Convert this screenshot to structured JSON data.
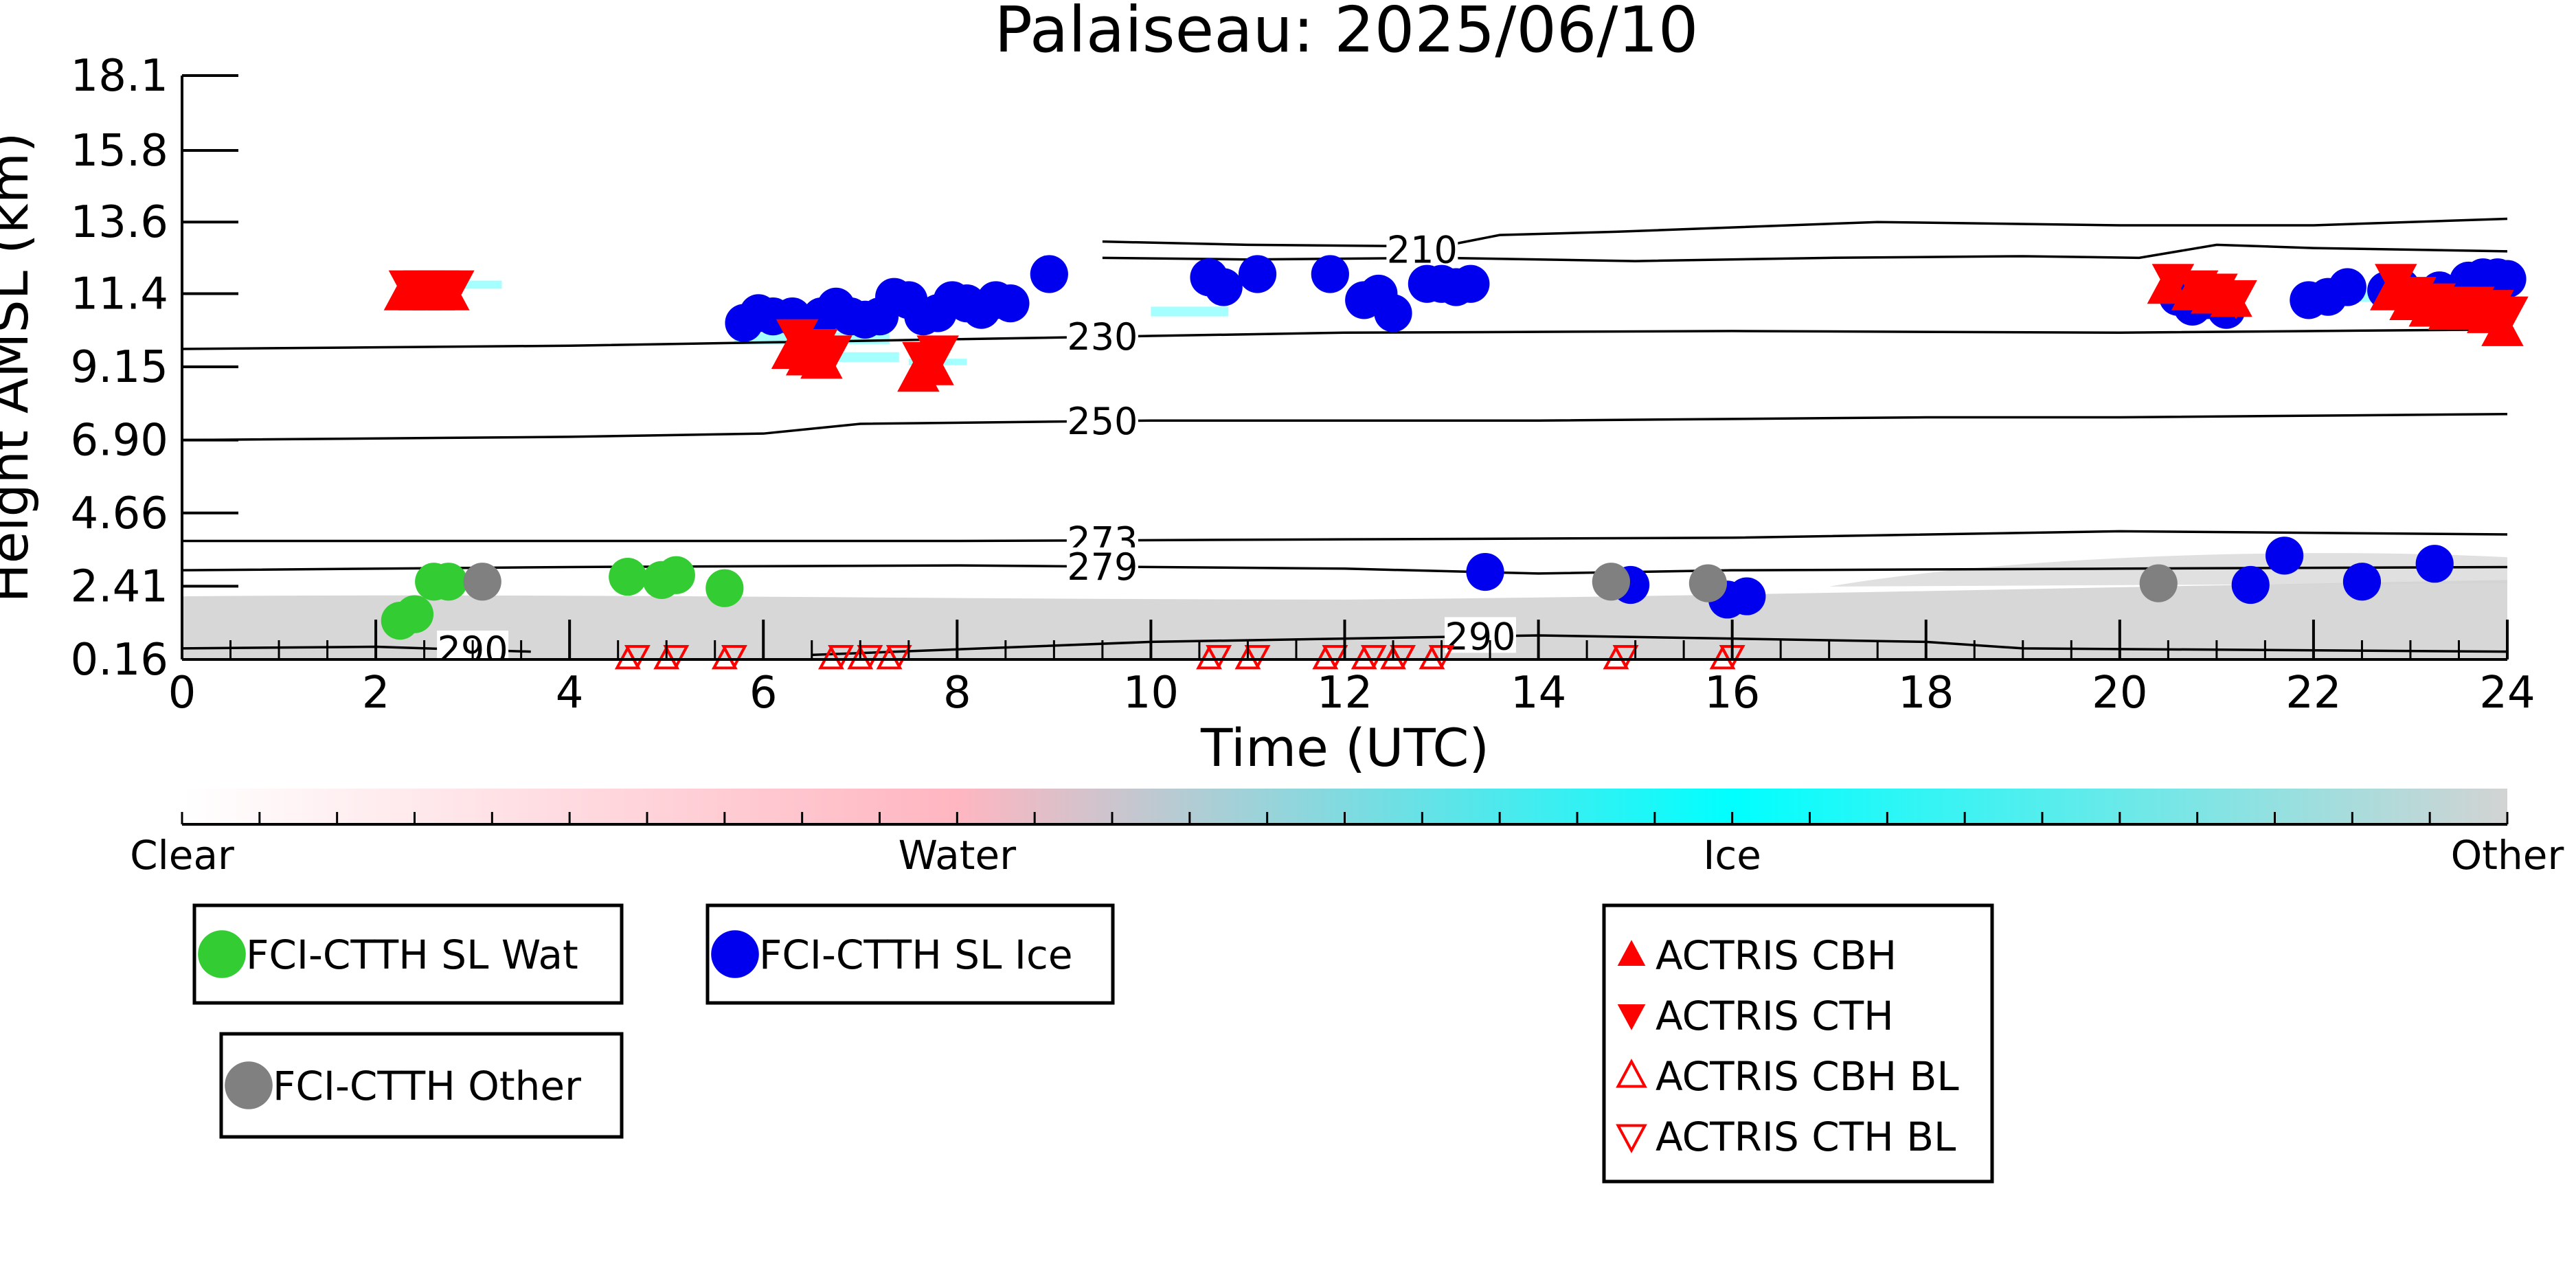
{
  "chart_data": {
    "type": "scatter",
    "title": "Palaiseau: 2025/06/10",
    "xlabel": "Time (UTC)",
    "ylabel": "Height AMSL (km)",
    "xlim": [
      0,
      24
    ],
    "ylim": [
      0.16,
      18.1
    ],
    "x_ticks": [
      "0",
      "2",
      "4",
      "6",
      "8",
      "10",
      "12",
      "14",
      "16",
      "18",
      "20",
      "22",
      "24"
    ],
    "y_ticks": [
      "0.16",
      "2.41",
      "4.66",
      "6.90",
      "9.15",
      "11.4",
      "13.6",
      "15.8",
      "18.1"
    ],
    "colorbar": {
      "labels": [
        "Clear",
        "Water",
        "Ice",
        "Other"
      ],
      "colors": [
        "#ffffff",
        "#ffb6c1",
        "#00ffff",
        "#d3d3d3"
      ]
    },
    "isotherms": [
      {
        "label": "210",
        "label_x": 12.8,
        "upper": [
          [
            9.5,
            13.0
          ],
          [
            11,
            12.9
          ],
          [
            13,
            12.85
          ],
          [
            13.6,
            13.2
          ],
          [
            14.8,
            13.3
          ],
          [
            17.5,
            13.6
          ],
          [
            20,
            13.5
          ],
          [
            22,
            13.5
          ],
          [
            24,
            13.7
          ]
        ],
        "lower": [
          [
            9.5,
            12.5
          ],
          [
            11,
            12.45
          ],
          [
            13,
            12.5
          ],
          [
            15,
            12.4
          ],
          [
            17,
            12.5
          ],
          [
            19,
            12.55
          ],
          [
            20.2,
            12.5
          ],
          [
            21,
            12.9
          ],
          [
            22,
            12.8
          ],
          [
            24,
            12.7
          ]
        ]
      },
      {
        "label": "230",
        "label_x": 9.5,
        "points": [
          [
            0,
            9.7
          ],
          [
            2,
            9.75
          ],
          [
            4,
            9.8
          ],
          [
            6,
            9.9
          ],
          [
            8,
            10.0
          ],
          [
            10,
            10.1
          ],
          [
            12,
            10.2
          ],
          [
            16,
            10.25
          ],
          [
            20,
            10.2
          ],
          [
            24,
            10.3
          ]
        ]
      },
      {
        "label": "250",
        "label_x": 9.5,
        "points": [
          [
            0,
            6.9
          ],
          [
            4,
            7.0
          ],
          [
            6,
            7.1
          ],
          [
            7,
            7.4
          ],
          [
            10,
            7.5
          ],
          [
            14,
            7.5
          ],
          [
            18,
            7.6
          ],
          [
            20,
            7.6
          ],
          [
            24,
            7.7
          ]
        ]
      },
      {
        "label": "273",
        "label_x": 9.5,
        "points": [
          [
            0,
            3.8
          ],
          [
            4,
            3.8
          ],
          [
            8,
            3.8
          ],
          [
            12,
            3.85
          ],
          [
            16,
            3.9
          ],
          [
            20,
            4.1
          ],
          [
            24,
            4.0
          ]
        ]
      },
      {
        "label": "279",
        "label_x": 9.5,
        "points": [
          [
            0,
            2.9
          ],
          [
            4,
            3.0
          ],
          [
            8,
            3.05
          ],
          [
            12,
            2.95
          ],
          [
            14,
            2.8
          ],
          [
            16,
            2.9
          ],
          [
            20,
            2.95
          ],
          [
            24,
            3.0
          ]
        ]
      },
      {
        "label": "290",
        "label_x": 3.0,
        "points": [
          [
            0,
            0.5
          ],
          [
            2,
            0.55
          ],
          [
            3.6,
            0.4
          ]
        ]
      },
      {
        "label": "290",
        "label_x": 13.4,
        "points": [
          [
            6.5,
            0.3
          ],
          [
            10,
            0.7
          ],
          [
            12,
            0.8
          ],
          [
            14,
            0.9
          ],
          [
            16,
            0.8
          ],
          [
            18,
            0.7
          ],
          [
            19,
            0.5
          ],
          [
            24,
            0.4
          ]
        ]
      }
    ],
    "series": [
      {
        "name": "FCI-CTTH SL Wat",
        "color": "#33cc33",
        "marker": "circle",
        "points": [
          [
            2.25,
            1.35
          ],
          [
            2.4,
            1.55
          ],
          [
            2.6,
            2.55
          ],
          [
            2.75,
            2.55
          ],
          [
            4.6,
            2.7
          ],
          [
            4.95,
            2.6
          ],
          [
            5.1,
            2.75
          ],
          [
            5.6,
            2.35
          ]
        ]
      },
      {
        "name": "FCI-CTTH SL Ice",
        "color": "#0000ee",
        "marker": "circle",
        "points": [
          [
            5.8,
            10.5
          ],
          [
            5.95,
            10.8
          ],
          [
            6.1,
            10.7
          ],
          [
            6.3,
            10.7
          ],
          [
            6.45,
            10.4
          ],
          [
            6.6,
            10.7
          ],
          [
            6.75,
            11.0
          ],
          [
            6.9,
            10.7
          ],
          [
            7.05,
            10.6
          ],
          [
            7.2,
            10.7
          ],
          [
            7.35,
            11.3
          ],
          [
            7.5,
            11.2
          ],
          [
            7.65,
            10.7
          ],
          [
            7.8,
            10.8
          ],
          [
            7.95,
            11.2
          ],
          [
            8.1,
            11.1
          ],
          [
            8.25,
            10.9
          ],
          [
            8.4,
            11.2
          ],
          [
            8.55,
            11.1
          ],
          [
            8.95,
            12.0
          ],
          [
            10.6,
            11.9
          ],
          [
            10.75,
            11.6
          ],
          [
            11.1,
            12.0
          ],
          [
            11.85,
            12.0
          ],
          [
            12.2,
            11.2
          ],
          [
            12.35,
            11.4
          ],
          [
            12.5,
            10.8
          ],
          [
            12.85,
            11.7
          ],
          [
            13.0,
            11.7
          ],
          [
            13.15,
            11.6
          ],
          [
            13.3,
            11.7
          ],
          [
            13.45,
            2.85
          ],
          [
            14.95,
            2.45
          ],
          [
            15.95,
            2.0
          ],
          [
            16.15,
            2.1
          ],
          [
            20.6,
            11.3
          ],
          [
            20.75,
            11.0
          ],
          [
            20.9,
            11.2
          ],
          [
            21.1,
            10.9
          ],
          [
            21.35,
            2.45
          ],
          [
            21.7,
            3.35
          ],
          [
            21.95,
            11.2
          ],
          [
            22.15,
            11.3
          ],
          [
            22.35,
            11.6
          ],
          [
            22.5,
            2.55
          ],
          [
            22.75,
            11.5
          ],
          [
            22.9,
            11.6
          ],
          [
            23.05,
            11.2
          ],
          [
            23.3,
            11.5
          ],
          [
            23.25,
            3.1
          ],
          [
            23.6,
            11.8
          ],
          [
            23.75,
            11.9
          ],
          [
            23.9,
            11.9
          ],
          [
            24.0,
            11.85
          ]
        ]
      },
      {
        "name": "FCI-CTTH Other",
        "color": "#808080",
        "marker": "circle",
        "points": [
          [
            3.1,
            2.55
          ],
          [
            14.75,
            2.55
          ],
          [
            15.75,
            2.5
          ],
          [
            20.4,
            2.5
          ]
        ]
      },
      {
        "name": "ACTRIS CBH",
        "color": "#ff0000",
        "marker": "triangle-up",
        "points": [
          [
            2.3,
            11.4
          ],
          [
            2.45,
            11.4
          ],
          [
            2.6,
            11.4
          ],
          [
            2.75,
            11.4
          ],
          [
            6.3,
            9.6
          ],
          [
            6.45,
            9.4
          ],
          [
            6.6,
            9.3
          ],
          [
            7.6,
            8.9
          ],
          [
            7.75,
            9.1
          ],
          [
            20.5,
            11.6
          ],
          [
            20.75,
            11.4
          ],
          [
            20.95,
            11.3
          ],
          [
            21.15,
            11.2
          ],
          [
            22.8,
            11.4
          ],
          [
            23.0,
            11.1
          ],
          [
            23.2,
            10.9
          ],
          [
            23.4,
            10.8
          ],
          [
            23.6,
            10.8
          ],
          [
            23.8,
            10.7
          ],
          [
            23.95,
            10.3
          ]
        ]
      },
      {
        "name": "ACTRIS CTH",
        "color": "#ff0000",
        "marker": "triangle-down",
        "points": [
          [
            2.35,
            11.6
          ],
          [
            2.5,
            11.6
          ],
          [
            2.65,
            11.6
          ],
          [
            2.8,
            11.6
          ],
          [
            6.35,
            10.1
          ],
          [
            6.55,
            9.8
          ],
          [
            6.7,
            9.6
          ],
          [
            7.65,
            9.4
          ],
          [
            7.8,
            9.6
          ],
          [
            20.55,
            11.8
          ],
          [
            20.8,
            11.6
          ],
          [
            21.0,
            11.5
          ],
          [
            21.2,
            11.3
          ],
          [
            22.85,
            11.8
          ],
          [
            23.05,
            11.4
          ],
          [
            23.25,
            11.2
          ],
          [
            23.45,
            11.1
          ],
          [
            23.65,
            11.1
          ],
          [
            23.85,
            11.0
          ],
          [
            24.0,
            10.8
          ]
        ]
      },
      {
        "name": "ACTRIS CBH BL",
        "color": "#ff0000",
        "marker": "triangle-up-open",
        "points": [
          [
            4.6,
            0.16
          ],
          [
            5.0,
            0.16
          ],
          [
            5.6,
            0.16
          ],
          [
            6.7,
            0.16
          ],
          [
            7.0,
            0.16
          ],
          [
            7.3,
            0.16
          ],
          [
            10.6,
            0.16
          ],
          [
            11.0,
            0.16
          ],
          [
            11.8,
            0.16
          ],
          [
            12.2,
            0.16
          ],
          [
            12.5,
            0.16
          ],
          [
            12.9,
            0.16
          ],
          [
            14.8,
            0.16
          ],
          [
            15.9,
            0.16
          ]
        ]
      },
      {
        "name": "ACTRIS CTH BL",
        "color": "#ff0000",
        "marker": "triangle-down-open",
        "points": [
          [
            4.7,
            0.3
          ],
          [
            5.1,
            0.3
          ],
          [
            5.7,
            0.3
          ],
          [
            6.8,
            0.3
          ],
          [
            7.1,
            0.3
          ],
          [
            7.4,
            0.3
          ],
          [
            10.7,
            0.3
          ],
          [
            11.1,
            0.3
          ],
          [
            11.9,
            0.3
          ],
          [
            12.3,
            0.3
          ],
          [
            12.6,
            0.3
          ],
          [
            13.0,
            0.3
          ],
          [
            14.9,
            0.3
          ],
          [
            16.0,
            0.3
          ]
        ]
      }
    ],
    "legend": [
      {
        "label": "FCI-CTTH SL Wat",
        "marker": "circle",
        "color": "#33cc33"
      },
      {
        "label": "FCI-CTTH SL Ice",
        "marker": "circle",
        "color": "#0000ee"
      },
      {
        "label": "FCI-CTTH Other",
        "marker": "circle",
        "color": "#808080"
      },
      {
        "label": "ACTRIS CBH",
        "marker": "triangle-up",
        "color": "#ff0000"
      },
      {
        "label": "ACTRIS CTH",
        "marker": "triangle-down",
        "color": "#ff0000"
      },
      {
        "label": "ACTRIS CBH BL",
        "marker": "triangle-up-open",
        "color": "#ff0000"
      },
      {
        "label": "ACTRIS CTH BL",
        "marker": "triangle-down-open",
        "color": "#ff0000"
      }
    ]
  }
}
